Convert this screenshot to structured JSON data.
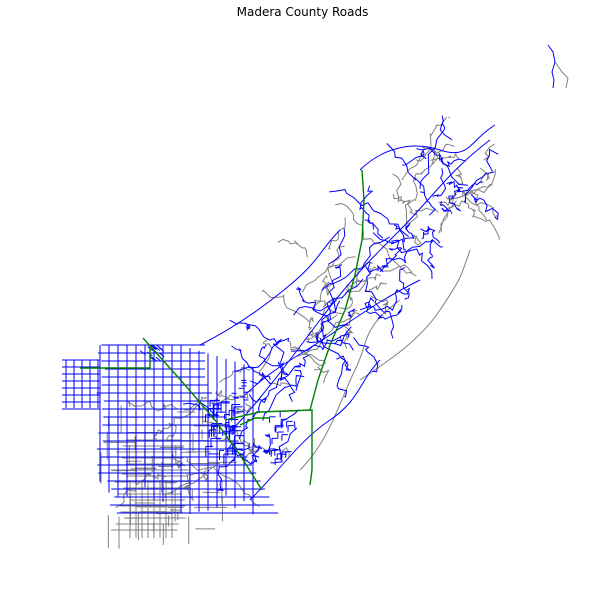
{
  "map": {
    "title": "Madera County Roads",
    "colors": {
      "local": "#808080",
      "collector": "#0000ff",
      "highway": "#008000",
      "background": "#ffffff"
    }
  }
}
